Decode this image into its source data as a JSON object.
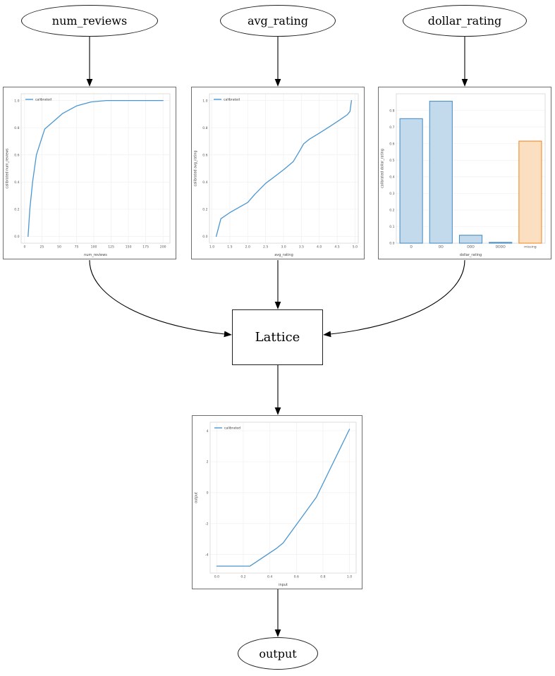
{
  "nodes": {
    "num_reviews": "num_reviews",
    "avg_rating": "avg_rating",
    "dollar_rating": "dollar_rating",
    "lattice": "Lattice",
    "output": "output"
  },
  "colors": {
    "line_blue": "#4a96d2",
    "bar_blue_fill": "#c3d9ec",
    "bar_blue_edge": "#4b90c6",
    "bar_orange_fill": "#fbdfc0",
    "bar_orange_edge": "#f08c2e",
    "edge_stroke": "#000000"
  },
  "chart_data": [
    {
      "id": "cal_num_reviews",
      "type": "line",
      "title": "",
      "xlabel": "num_reviews",
      "ylabel": "calibrated num_reviews",
      "legend": "calibrated",
      "legend_position": "upper-left",
      "line_color": "#4a96d2",
      "grid": true,
      "xlim": [
        -5,
        210
      ],
      "ylim": [
        -0.05,
        1.05
      ],
      "x_ticks": [
        "0",
        "25",
        "50",
        "75",
        "100",
        "125",
        "150",
        "175",
        "200"
      ],
      "y_ticks": [
        "0.0",
        "0.2",
        "0.4",
        "0.6",
        "0.8",
        "1.0"
      ],
      "points": [
        [
          5,
          0.0
        ],
        [
          7.5,
          0.2
        ],
        [
          11.5,
          0.4
        ],
        [
          17,
          0.6
        ],
        [
          29,
          0.79
        ],
        [
          55,
          0.905
        ],
        [
          75,
          0.96
        ],
        [
          96,
          0.99
        ],
        [
          118,
          1.0
        ],
        [
          200,
          1.0
        ]
      ]
    },
    {
      "id": "cal_avg_rating",
      "type": "line",
      "title": "",
      "xlabel": "avg_rating",
      "ylabel": "calibrated avg_rating",
      "legend": "calibrated",
      "legend_position": "upper-left",
      "line_color": "#4a96d2",
      "grid": true,
      "xlim": [
        0.93,
        5.09
      ],
      "ylim": [
        -0.05,
        1.05
      ],
      "x_ticks": [
        "1.0",
        "1.5",
        "2.0",
        "2.5",
        "3.0",
        "3.5",
        "4.0",
        "4.5",
        "5.0"
      ],
      "y_ticks": [
        "0.0",
        "0.2",
        "0.4",
        "0.6",
        "0.8",
        "1.0"
      ],
      "points": [
        [
          1.12,
          0.0
        ],
        [
          1.25,
          0.13
        ],
        [
          1.5,
          0.175
        ],
        [
          2.0,
          0.25
        ],
        [
          2.2,
          0.31
        ],
        [
          2.5,
          0.39
        ],
        [
          2.75,
          0.44
        ],
        [
          3.0,
          0.49
        ],
        [
          3.27,
          0.55
        ],
        [
          3.43,
          0.62
        ],
        [
          3.56,
          0.68
        ],
        [
          3.72,
          0.715
        ],
        [
          4.0,
          0.76
        ],
        [
          4.3,
          0.81
        ],
        [
          4.56,
          0.855
        ],
        [
          4.78,
          0.895
        ],
        [
          4.86,
          0.92
        ],
        [
          4.9,
          1.0
        ]
      ]
    },
    {
      "id": "cal_dollar_rating",
      "type": "bar",
      "title": "",
      "xlabel": "dollar_rating",
      "ylabel": "calibrated dollar_rating",
      "grid": true,
      "categories": [
        "D",
        "DD",
        "DDD",
        "DDDD",
        "missing"
      ],
      "values": [
        0.75,
        0.855,
        0.048,
        0.005,
        0.615
      ],
      "bar_fills": [
        "#c3d9ec",
        "#c3d9ec",
        "#c3d9ec",
        "#c3d9ec",
        "#fbdfc0"
      ],
      "bar_edges": [
        "#4b90c6",
        "#4b90c6",
        "#4b90c6",
        "#4b90c6",
        "#f08c2e"
      ],
      "ylim": [
        0,
        0.9
      ],
      "y_ticks": [
        "0.0",
        "0.1",
        "0.2",
        "0.3",
        "0.4",
        "0.5",
        "0.6",
        "0.7",
        "0.8"
      ]
    },
    {
      "id": "lattice_output",
      "type": "line",
      "title": "",
      "xlabel": "input",
      "ylabel": "output",
      "legend": "calibrated",
      "legend_position": "upper-left",
      "line_color": "#4a96d2",
      "grid": true,
      "xlim": [
        -0.05,
        1.05
      ],
      "ylim": [
        -5.2,
        4.55
      ],
      "x_ticks": [
        "0.0",
        "0.2",
        "0.4",
        "0.6",
        "0.8",
        "1.0"
      ],
      "y_ticks": [
        "-4",
        "-2",
        "0",
        "2",
        "4"
      ],
      "points": [
        [
          0,
          -4.75
        ],
        [
          0.25,
          -4.75
        ],
        [
          0.45,
          -3.6
        ],
        [
          0.5,
          -3.25
        ],
        [
          0.75,
          -0.3
        ],
        [
          1.0,
          4.1
        ]
      ]
    }
  ]
}
